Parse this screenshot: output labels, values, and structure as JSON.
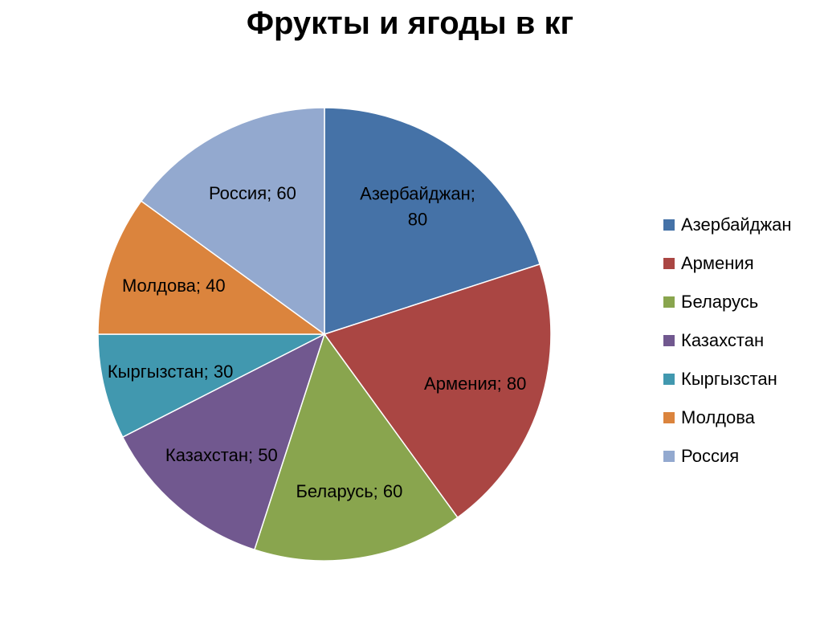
{
  "chart_data": {
    "type": "pie",
    "title": "Фрукты и ягоды в кг",
    "legend_position": "right",
    "slices": [
      {
        "name": "Азербайджан",
        "value": 80,
        "label_lines": [
          "Азербайджан;",
          "80"
        ],
        "color": "#4572A7"
      },
      {
        "name": "Армения",
        "value": 80,
        "label_lines": [
          "Армения; 80"
        ],
        "color": "#AA4643"
      },
      {
        "name": "Беларусь",
        "value": 60,
        "label_lines": [
          "Беларусь; 60"
        ],
        "color": "#89A54E"
      },
      {
        "name": "Казахстан",
        "value": 50,
        "label_lines": [
          "Казахстан; 50"
        ],
        "color": "#71588F"
      },
      {
        "name": "Кыргызстан",
        "value": 30,
        "label_lines": [
          "Кыргызстан; 30"
        ],
        "color": "#4198AF"
      },
      {
        "name": "Молдова",
        "value": 40,
        "label_lines": [
          "Молдова; 40"
        ],
        "color": "#DB843D"
      },
      {
        "name": "Россия",
        "value": 60,
        "label_lines": [
          "Россия; 60"
        ],
        "color": "#93A9CF"
      }
    ]
  }
}
